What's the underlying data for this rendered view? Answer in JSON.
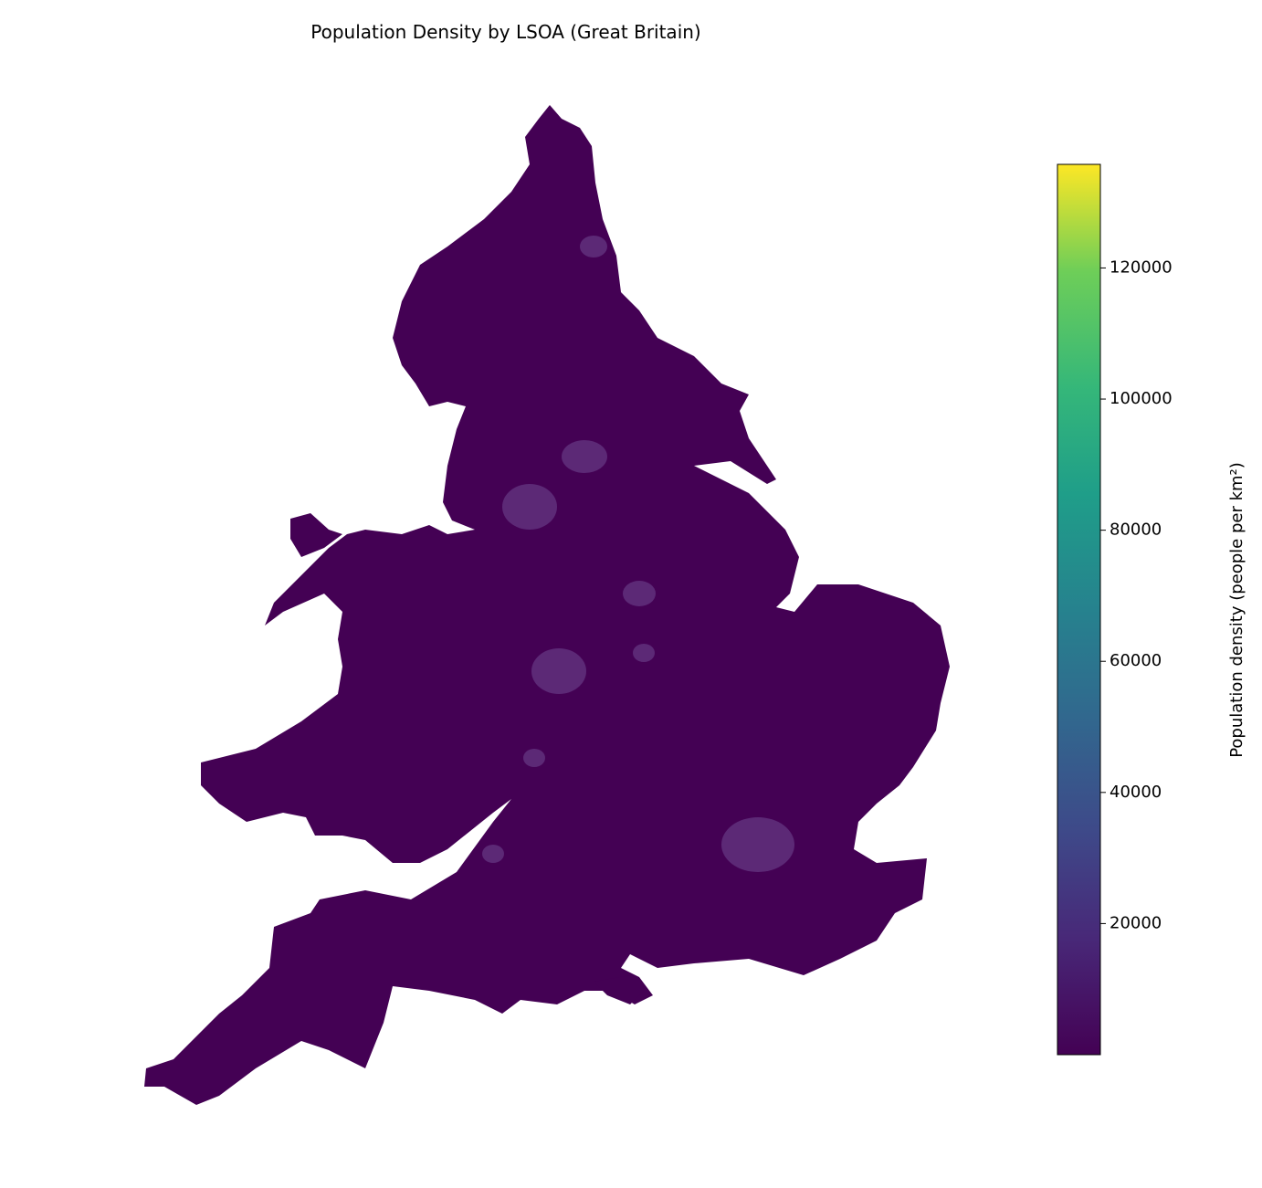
{
  "title": "Population Density by LSOA (Great Britain)",
  "colorbar": {
    "label": "Population density (people per km²)",
    "lim": [
      0,
      135800
    ],
    "ticks": [
      20000,
      40000,
      60000,
      80000,
      100000,
      120000
    ]
  }
}
